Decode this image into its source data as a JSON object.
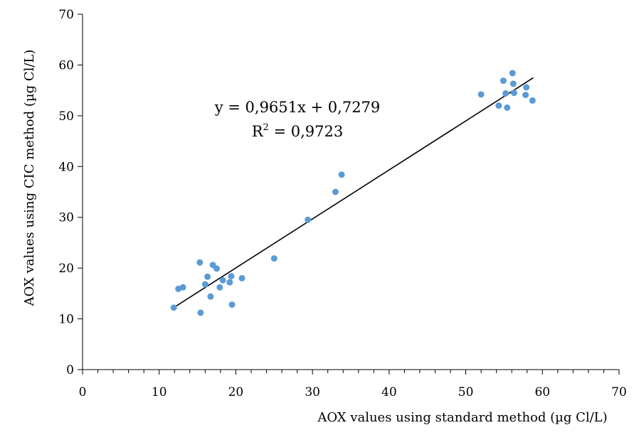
{
  "chart_data": {
    "type": "scatter",
    "xlabel": "AOX values using standard method (µg Cl/L)",
    "ylabel": "AOX values using CIC method (µg Cl/L)",
    "xlim": [
      0,
      70
    ],
    "ylim": [
      0,
      70
    ],
    "x_ticks": [
      0,
      10,
      20,
      30,
      40,
      50,
      60,
      70
    ],
    "y_ticks": [
      0,
      10,
      20,
      30,
      40,
      50,
      60,
      70
    ],
    "x_tick_labels": [
      "0",
      "10",
      "20",
      "30",
      "40",
      "50",
      "60",
      "70"
    ],
    "y_tick_labels": [
      "0",
      "10",
      "20",
      "30",
      "40",
      "50",
      "60",
      "70"
    ],
    "grid": false,
    "legend": "none",
    "points": [
      {
        "x": 11.9,
        "y": 12.2
      },
      {
        "x": 12.5,
        "y": 15.9
      },
      {
        "x": 13.1,
        "y": 16.2
      },
      {
        "x": 15.3,
        "y": 21.1
      },
      {
        "x": 15.4,
        "y": 11.2
      },
      {
        "x": 16.0,
        "y": 16.8
      },
      {
        "x": 16.3,
        "y": 18.3
      },
      {
        "x": 16.7,
        "y": 14.4
      },
      {
        "x": 17.0,
        "y": 20.6
      },
      {
        "x": 17.5,
        "y": 19.9
      },
      {
        "x": 17.9,
        "y": 16.2
      },
      {
        "x": 18.3,
        "y": 17.6
      },
      {
        "x": 19.2,
        "y": 17.2
      },
      {
        "x": 19.4,
        "y": 18.4
      },
      {
        "x": 19.5,
        "y": 12.8
      },
      {
        "x": 20.8,
        "y": 18.0
      },
      {
        "x": 25.0,
        "y": 21.9
      },
      {
        "x": 29.4,
        "y": 29.5
      },
      {
        "x": 33.0,
        "y": 35.0
      },
      {
        "x": 33.8,
        "y": 38.4
      },
      {
        "x": 52.0,
        "y": 54.2
      },
      {
        "x": 54.3,
        "y": 52.0
      },
      {
        "x": 54.9,
        "y": 56.9
      },
      {
        "x": 55.2,
        "y": 54.4
      },
      {
        "x": 55.4,
        "y": 51.6
      },
      {
        "x": 56.1,
        "y": 58.4
      },
      {
        "x": 56.2,
        "y": 56.3
      },
      {
        "x": 56.3,
        "y": 54.5
      },
      {
        "x": 57.8,
        "y": 54.1
      },
      {
        "x": 57.9,
        "y": 55.6
      },
      {
        "x": 58.7,
        "y": 53.0
      }
    ],
    "trendline": {
      "x_range": [
        11.9,
        58.8
      ],
      "slope": 0.9651,
      "intercept": 0.7279,
      "equation": "y = 0,9651x + 0,7279",
      "r2_prefix": "R",
      "r2_exponent": "2",
      "r2_value": " = 0,9723"
    },
    "colors": {
      "point": "#5B9BD5",
      "line": "#000000",
      "axis": "#000000"
    }
  }
}
